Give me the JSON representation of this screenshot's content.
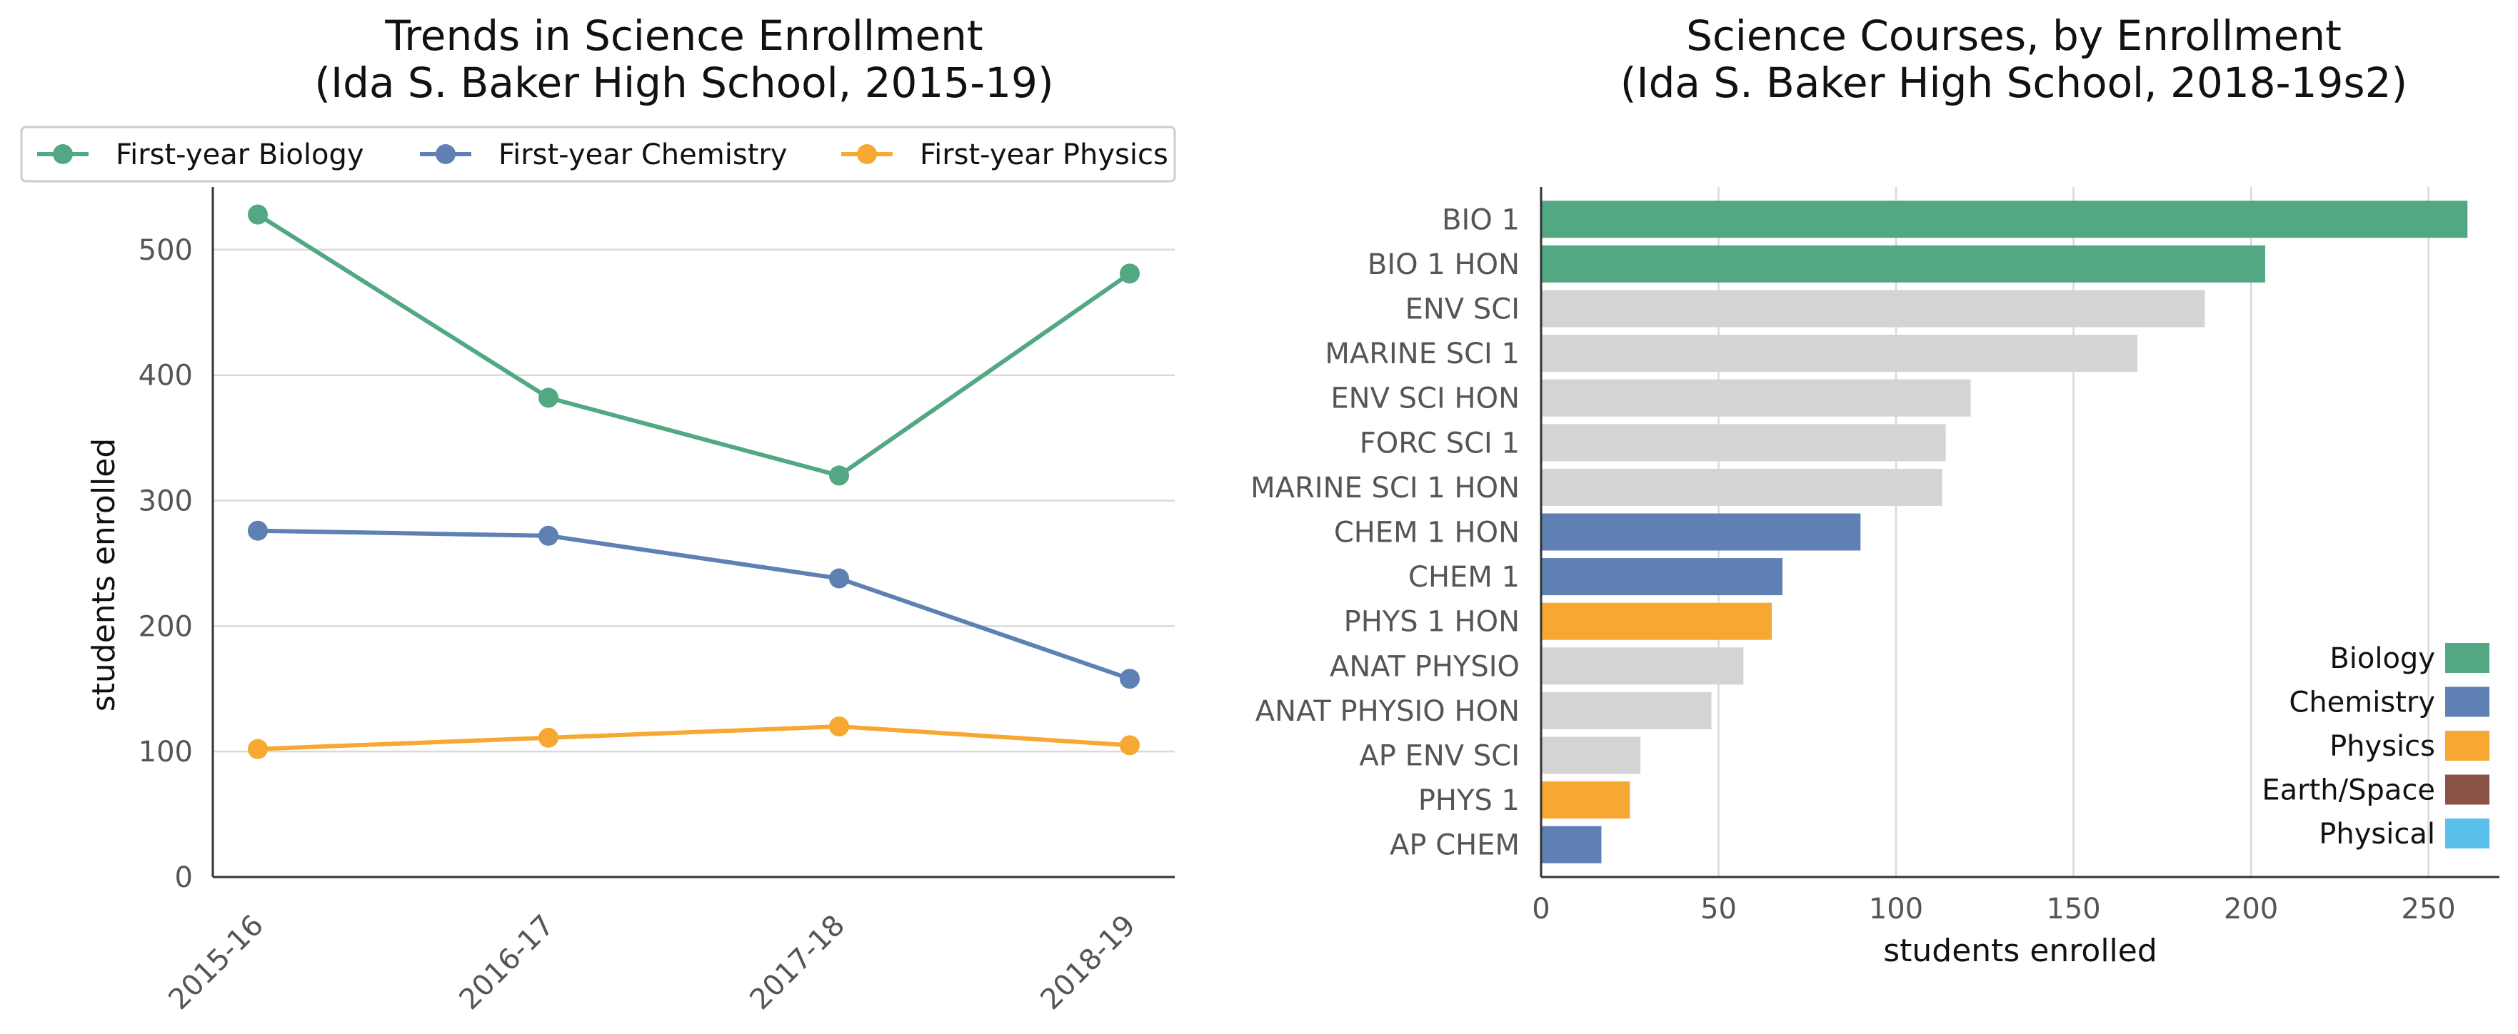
{
  "chart_data": [
    {
      "type": "line",
      "title": "Trends in Science Enrollment\n(Ida S. Baker High School, 2015-19)",
      "xlabel": "",
      "ylabel": "students enrolled",
      "x": [
        "2015-16",
        "2016-17",
        "2017-18",
        "2018-19"
      ],
      "ylim": [
        0,
        550
      ],
      "yticks": [
        0,
        100,
        200,
        300,
        400,
        500
      ],
      "grid": "horizontal",
      "legend": "top",
      "series": [
        {
          "name": "First-year Biology",
          "color": "#52a882",
          "values": [
            528,
            382,
            320,
            481
          ]
        },
        {
          "name": "First-year Chemistry",
          "color": "#5f80b3",
          "values": [
            276,
            272,
            238,
            158
          ]
        },
        {
          "name": "First-year Physics",
          "color": "#f7a832",
          "values": [
            102,
            111,
            120,
            105
          ]
        }
      ]
    },
    {
      "type": "bar",
      "orientation": "horizontal",
      "title": "Science Courses, by Enrollment\n(Ida S. Baker High School, 2018-19s2)",
      "xlabel": "students enrolled",
      "ylabel": "",
      "xlim": [
        0,
        270
      ],
      "xticks": [
        0,
        50,
        100,
        150,
        200,
        250
      ],
      "grid": "vertical",
      "legend": "bottom-right",
      "categories": [
        "BIO 1",
        "BIO 1 HON",
        "ENV SCI",
        "MARINE SCI 1",
        "ENV SCI HON",
        "FORC SCI 1",
        "MARINE SCI 1 HON",
        "CHEM 1 HON",
        "CHEM 1",
        "PHYS 1 HON",
        "ANAT PHYSIO",
        "ANAT PHYSIO HON",
        "AP ENV SCI",
        "PHYS 1",
        "AP CHEM"
      ],
      "values": [
        261,
        204,
        187,
        168,
        121,
        114,
        113,
        90,
        68,
        65,
        57,
        48,
        28,
        25,
        17
      ],
      "bar_categories": [
        "Biology",
        "Biology",
        "Other",
        "Other",
        "Other",
        "Other",
        "Other",
        "Chemistry",
        "Chemistry",
        "Physics",
        "Other",
        "Other",
        "Other",
        "Physics",
        "Chemistry"
      ],
      "colors": {
        "Biology": "#52a882",
        "Chemistry": "#5f80b3",
        "Physics": "#f7a832",
        "Earth/Space": "#8b5246",
        "Physical": "#5bc0eb",
        "Other": "#d4d4d4"
      },
      "legend_items": [
        {
          "name": "Biology",
          "color": "#52a882"
        },
        {
          "name": "Chemistry",
          "color": "#5f80b3"
        },
        {
          "name": "Physics",
          "color": "#f7a832"
        },
        {
          "name": "Earth/Space",
          "color": "#8b5246"
        },
        {
          "name": "Physical",
          "color": "#5bc0eb"
        }
      ]
    }
  ]
}
